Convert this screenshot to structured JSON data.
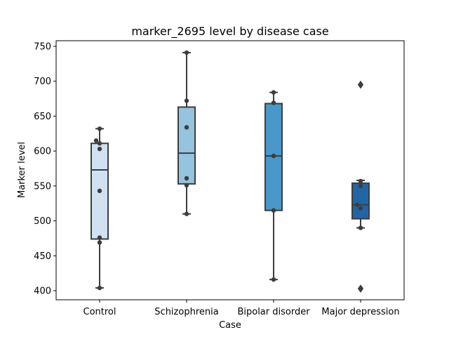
{
  "chart_data": {
    "type": "box",
    "title": "marker_2695 level by disease case",
    "xlabel": "Case",
    "ylabel": "Marker level",
    "ylim": [
      387,
      758
    ],
    "yticks": [
      400,
      450,
      500,
      550,
      600,
      650,
      700,
      750
    ],
    "grid": false,
    "categories": [
      "Control",
      "Schizophrenia",
      "Bipolar disorder",
      "Major depression"
    ],
    "colors": [
      "#d0e1f2",
      "#94c4df",
      "#4a98c9",
      "#2165a6"
    ],
    "boxes": [
      {
        "category": "Control",
        "whisker_low": 404,
        "q1": 474,
        "median": 573,
        "q3": 611,
        "whisker_high": 632,
        "outliers": []
      },
      {
        "category": "Schizophrenia",
        "whisker_low": 510,
        "q1": 553,
        "median": 597,
        "q3": 663,
        "whisker_high": 741,
        "outliers": []
      },
      {
        "category": "Bipolar disorder",
        "whisker_low": 416,
        "q1": 515,
        "median": 593,
        "q3": 668,
        "whisker_high": 684,
        "outliers": []
      },
      {
        "category": "Major depression",
        "whisker_low": 490,
        "q1": 503,
        "median": 523,
        "q3": 554,
        "whisker_high": 558,
        "outliers": [
          403,
          695
        ]
      }
    ],
    "points": [
      {
        "category": "Control",
        "values": [
          404,
          469,
          476,
          543,
          603,
          611,
          615,
          632
        ]
      },
      {
        "category": "Schizophrenia",
        "values": [
          510,
          551,
          561,
          634,
          672,
          741
        ]
      },
      {
        "category": "Bipolar disorder",
        "values": [
          416,
          515,
          593,
          669,
          684
        ]
      },
      {
        "category": "Major depression",
        "values": [
          403,
          490,
          518,
          523,
          550,
          557,
          695
        ]
      }
    ]
  }
}
